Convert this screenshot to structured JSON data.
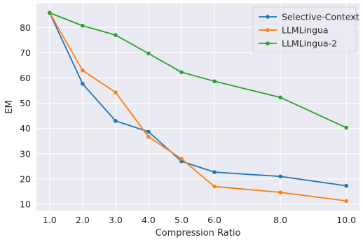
{
  "chart_data": {
    "type": "line",
    "xlabel": "Compression Ratio",
    "ylabel": "EM",
    "x": [
      1.0,
      2.0,
      3.0,
      4.0,
      5.0,
      6.0,
      8.0,
      10.0
    ],
    "x_tick_labels": [
      "1.0",
      "2.0",
      "3.0",
      "4.0",
      "5.0",
      "6.0",
      "8.0",
      "10.0"
    ],
    "y_ticks": [
      10,
      20,
      30,
      40,
      50,
      60,
      70,
      80
    ],
    "xlim": [
      0.6,
      10.4
    ],
    "ylim": [
      7.5,
      89.5
    ],
    "grid": true,
    "legend_position": "top-right",
    "series": [
      {
        "name": "Selective-Context",
        "color": "#1f77b4",
        "values": [
          85.8,
          57.7,
          43.0,
          38.7,
          27.0,
          22.7,
          21.0,
          17.3
        ]
      },
      {
        "name": "LLMLingua",
        "color": "#ff7f0e",
        "values": [
          85.8,
          63.0,
          54.3,
          36.7,
          28.0,
          17.0,
          14.7,
          11.3
        ]
      },
      {
        "name": "LLMLingua-2",
        "color": "#2ca02c",
        "values": [
          85.8,
          80.7,
          77.0,
          69.7,
          62.3,
          58.7,
          52.3,
          40.3
        ]
      }
    ]
  },
  "colors": {
    "plot_background": "#eaeaf2",
    "grid": "#ffffff",
    "text": "#262626"
  }
}
